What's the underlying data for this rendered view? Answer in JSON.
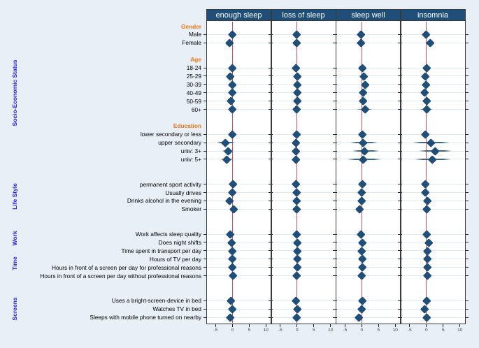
{
  "figure": {
    "background": "#e9eff6",
    "plot_background": "#ffffff",
    "colors": {
      "header_bg": "#1f4e79",
      "header_text": "#ffffff",
      "marker": "#1f4e79",
      "ref_line": "#d94a68",
      "gridline": "#dfe9f2",
      "panel_border": "#3a3a3a",
      "group_label": "#ee7612",
      "side_label": "#2222ee",
      "row_label": "#000000",
      "axis_tick_label": "#444444"
    }
  },
  "chart_data": {
    "type": "scatter",
    "subtype": "coefficient-forest-plot",
    "title": "",
    "panels": [
      "enough sleep",
      "loss of sleep",
      "sleep well",
      "insomnia"
    ],
    "x_ticks": [
      -5,
      0,
      5,
      10
    ],
    "x_range": [
      -7.6,
      11.4
    ],
    "ref_line": 0,
    "grid": true,
    "side_groups": [
      {
        "label": "Socio-Economic Status",
        "rows": [
          0,
          16
        ]
      },
      {
        "label": "Life Style",
        "rows": [
          19,
          22
        ]
      },
      {
        "label": "Work",
        "rows": [
          25,
          26
        ]
      },
      {
        "label": "Time",
        "rows": [
          27,
          30
        ]
      },
      {
        "label": "Screens",
        "rows": [
          33,
          35
        ]
      }
    ],
    "rows": [
      {
        "kind": "group",
        "label": "Gender"
      },
      {
        "kind": "item",
        "label": "Male",
        "values": [
          0.0,
          -0.2,
          -0.2,
          -0.2
        ],
        "ci": [
          null,
          null,
          null,
          null
        ]
      },
      {
        "kind": "item",
        "label": "Female",
        "values": [
          -0.8,
          -0.2,
          -0.2,
          1.2
        ],
        "ci": [
          [
            -1.8,
            0.2
          ],
          null,
          null,
          [
            0.3,
            2.1
          ]
        ]
      },
      {
        "kind": "gap"
      },
      {
        "kind": "group",
        "label": "Age"
      },
      {
        "kind": "item",
        "label": "18-24",
        "values": [
          0.0,
          -0.4,
          0.1,
          0.0
        ],
        "ci": [
          null,
          null,
          null,
          null
        ]
      },
      {
        "kind": "item",
        "label": "25-29",
        "values": [
          -0.6,
          0.0,
          0.6,
          -0.4
        ],
        "ci": [
          null,
          null,
          null,
          null
        ]
      },
      {
        "kind": "item",
        "label": "30-39",
        "values": [
          -0.1,
          0.0,
          1.1,
          -0.2
        ],
        "ci": [
          null,
          null,
          null,
          null
        ]
      },
      {
        "kind": "item",
        "label": "40-49",
        "values": [
          -0.1,
          0.0,
          0.4,
          -0.6
        ],
        "ci": [
          null,
          null,
          null,
          null
        ]
      },
      {
        "kind": "item",
        "label": "50-59",
        "values": [
          -0.5,
          0.0,
          0.4,
          0.0
        ],
        "ci": [
          null,
          null,
          [
            -0.8,
            1.6
          ],
          [
            -1.5,
            1.5
          ]
        ]
      },
      {
        "kind": "item",
        "label": "60+",
        "values": [
          -0.1,
          -0.1,
          1.1,
          0.0
        ],
        "ci": [
          null,
          null,
          [
            -1.5,
            3.2
          ],
          [
            -2.0,
            2.0
          ]
        ]
      },
      {
        "kind": "gap"
      },
      {
        "kind": "group",
        "label": "Education"
      },
      {
        "kind": "item",
        "label": "lower secondary or less",
        "values": [
          0.0,
          -0.2,
          0.1,
          -0.3
        ],
        "ci": [
          null,
          null,
          null,
          null
        ]
      },
      {
        "kind": "item",
        "label": "upper secondary",
        "values": [
          -2.0,
          -0.3,
          0.5,
          1.4
        ],
        "ci": [
          [
            -4.7,
            0.8
          ],
          [
            -1.3,
            0.7
          ],
          [
            -3.5,
            4.7
          ],
          [
            -4.1,
            7.0
          ]
        ]
      },
      {
        "kind": "item",
        "label": "univ: 3+",
        "values": [
          -1.3,
          -0.4,
          0.8,
          2.5
        ],
        "ci": [
          [
            -2.9,
            0.4
          ],
          null,
          [
            -2.8,
            5.1
          ],
          [
            -2.3,
            7.6
          ]
        ]
      },
      {
        "kind": "item",
        "label": "univ: 5+",
        "values": [
          -1.7,
          -0.3,
          0.4,
          1.8
        ],
        "ci": [
          [
            -3.4,
            0.2
          ],
          [
            -1.3,
            0.6
          ],
          [
            -4.2,
            5.8
          ],
          [
            -3.4,
            7.3
          ]
        ]
      },
      {
        "kind": "gap"
      },
      {
        "kind": "gap"
      },
      {
        "kind": "item",
        "label": "permanent sport activity",
        "values": [
          0.1,
          -0.3,
          0.2,
          -0.4
        ],
        "ci": [
          null,
          null,
          null,
          null
        ]
      },
      {
        "kind": "item",
        "label": "Usually drives",
        "values": [
          -0.1,
          -0.2,
          0.0,
          -0.4
        ],
        "ci": [
          null,
          null,
          null,
          null
        ]
      },
      {
        "kind": "item",
        "label": "Drinks alcohol in the evening",
        "values": [
          -0.8,
          -0.2,
          0.0,
          0.2
        ],
        "ci": [
          null,
          null,
          null,
          null
        ]
      },
      {
        "kind": "item",
        "label": "Smoker",
        "values": [
          0.5,
          -0.2,
          -0.6,
          0.0
        ],
        "ci": [
          null,
          null,
          null,
          null
        ]
      },
      {
        "kind": "gap"
      },
      {
        "kind": "gap"
      },
      {
        "kind": "item",
        "label": "Work affects sleep quality",
        "values": [
          -0.7,
          -0.2,
          -0.2,
          0.0
        ],
        "ci": [
          null,
          null,
          null,
          null
        ]
      },
      {
        "kind": "item",
        "label": "Does night shifts",
        "values": [
          -0.3,
          0.0,
          0.2,
          0.7
        ],
        "ci": [
          null,
          null,
          null,
          null
        ]
      },
      {
        "kind": "item",
        "label": "Time spent in transport per day",
        "values": [
          -0.1,
          0.0,
          0.0,
          0.2
        ],
        "ci": [
          null,
          null,
          null,
          null
        ]
      },
      {
        "kind": "item",
        "label": "Hours of TV per day",
        "values": [
          -0.1,
          0.0,
          0.2,
          0.2
        ],
        "ci": [
          null,
          null,
          null,
          null
        ]
      },
      {
        "kind": "item",
        "label": "Hours in front of a screen per day for professional reasons",
        "values": [
          -0.1,
          0.0,
          0.2,
          0.2
        ],
        "ci": [
          null,
          null,
          null,
          null
        ]
      },
      {
        "kind": "item",
        "label": "Hours in front of a screen per day without professional reasons",
        "values": [
          0.1,
          -0.2,
          0.0,
          0.2
        ],
        "ci": [
          null,
          null,
          null,
          null
        ]
      },
      {
        "kind": "gap"
      },
      {
        "kind": "gap"
      },
      {
        "kind": "item",
        "label": "Uses a bright-screen-device in bed",
        "values": [
          -0.4,
          -0.3,
          0.2,
          0.0
        ],
        "ci": [
          null,
          null,
          null,
          null
        ]
      },
      {
        "kind": "item",
        "label": "Watches TV in bed",
        "values": [
          -0.1,
          0.0,
          0.0,
          -0.6
        ],
        "ci": [
          null,
          null,
          null,
          null
        ]
      },
      {
        "kind": "item",
        "label": "Sleeps with mobile phone turned on nearby",
        "values": [
          -0.6,
          -0.2,
          -0.8,
          0.0
        ],
        "ci": [
          null,
          null,
          null,
          null
        ]
      }
    ]
  }
}
